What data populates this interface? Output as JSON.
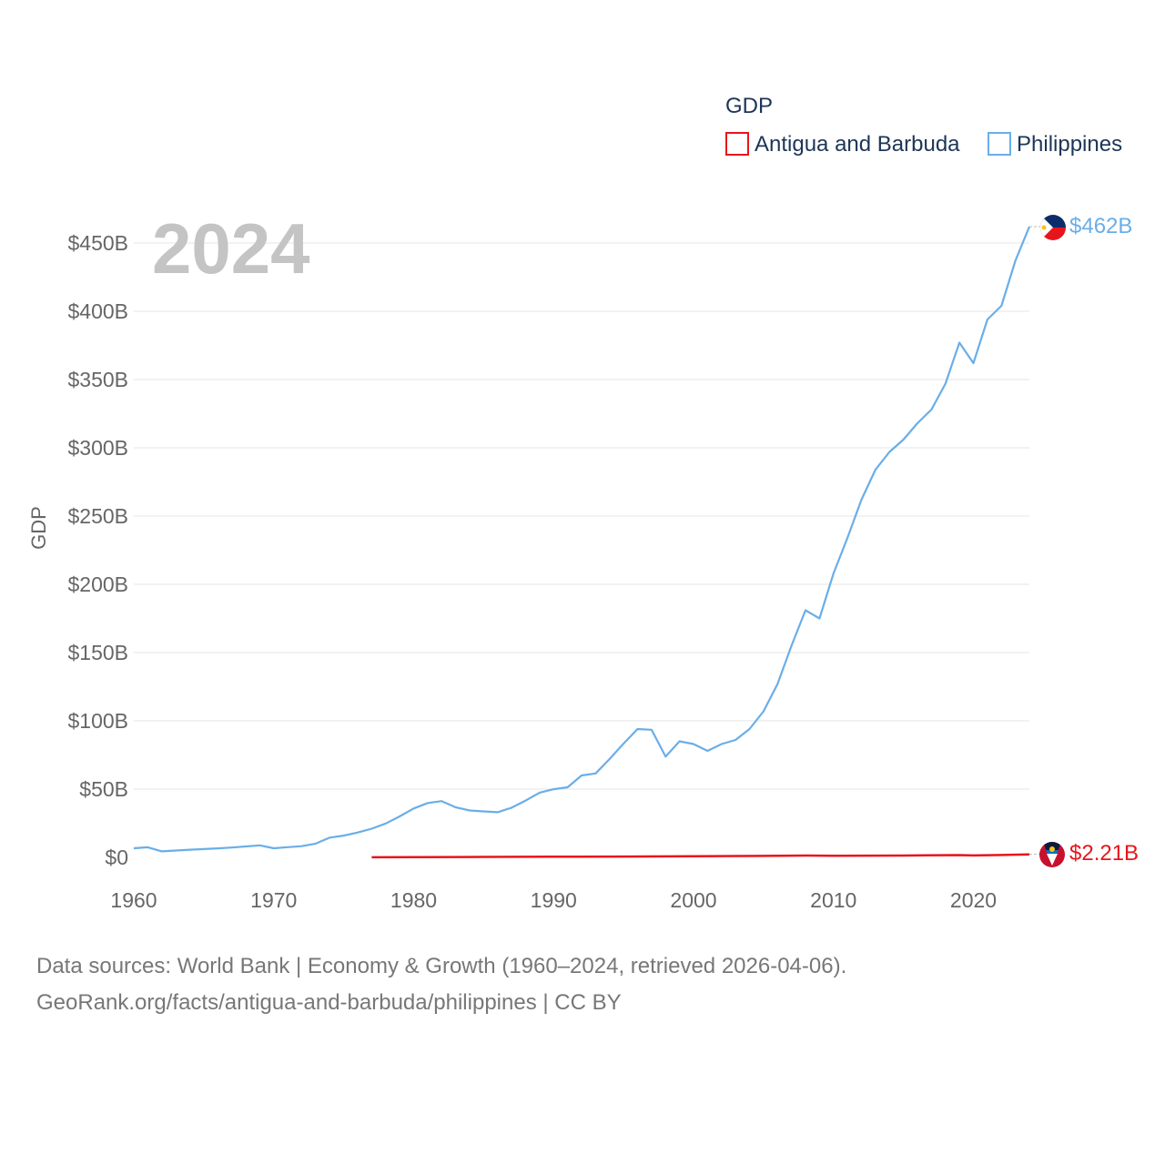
{
  "chart_data": {
    "type": "line",
    "legend_title": "GDP",
    "ylabel": "GDP",
    "year_label": "2024",
    "ylim": [
      0,
      462
    ],
    "xlim": [
      1960,
      2024
    ],
    "x_ticks": [
      1960,
      1970,
      1980,
      1990,
      2000,
      2010,
      2020
    ],
    "x_tick_labels": [
      "1960",
      "1970",
      "1980",
      "1990",
      "2000",
      "2010",
      "2020"
    ],
    "y_ticks": [
      0,
      50,
      100,
      150,
      200,
      250,
      300,
      350,
      400,
      450
    ],
    "y_tick_labels": [
      "$0",
      "$50B",
      "$100B",
      "$150B",
      "$200B",
      "$250B",
      "$300B",
      "$350B",
      "$400B",
      "$450B"
    ],
    "grid": true,
    "legend_position": "top-right",
    "series": [
      {
        "name": "Antigua and Barbuda",
        "color": "#e8141c",
        "end_label": "$2.21B",
        "flag_icon": "antigua-and-barbuda-flag-icon",
        "x": [
          1977,
          1980,
          1985,
          1990,
          1995,
          2000,
          2005,
          2008,
          2010,
          2015,
          2019,
          2020,
          2022,
          2024
        ],
        "values": [
          0.1,
          0.15,
          0.3,
          0.46,
          0.6,
          0.83,
          1.05,
          1.35,
          1.15,
          1.36,
          1.69,
          1.41,
          1.72,
          2.21
        ]
      },
      {
        "name": "Philippines",
        "color": "#6aaee8",
        "end_label": "$462B",
        "flag_icon": "philippines-flag-icon",
        "x": [
          1960,
          1961,
          1962,
          1963,
          1964,
          1965,
          1966,
          1967,
          1968,
          1969,
          1970,
          1971,
          1972,
          1973,
          1974,
          1975,
          1976,
          1977,
          1978,
          1979,
          1980,
          1981,
          1982,
          1983,
          1984,
          1985,
          1986,
          1987,
          1988,
          1989,
          1990,
          1991,
          1992,
          1993,
          1994,
          1995,
          1996,
          1997,
          1998,
          1999,
          2000,
          2001,
          2002,
          2003,
          2004,
          2005,
          2006,
          2007,
          2008,
          2009,
          2010,
          2011,
          2012,
          2013,
          2014,
          2015,
          2016,
          2017,
          2018,
          2019,
          2020,
          2021,
          2022,
          2023,
          2024
        ],
        "values": [
          6.7,
          7.4,
          4.4,
          5.0,
          5.6,
          6.1,
          6.6,
          7.2,
          8.0,
          8.8,
          6.7,
          7.5,
          8.2,
          10.1,
          14.5,
          15.9,
          18.2,
          21.0,
          24.8,
          30.0,
          35.8,
          39.8,
          41.2,
          36.7,
          34.3,
          33.7,
          33.1,
          36.4,
          41.6,
          47.4,
          49.9,
          51.3,
          60.0,
          61.5,
          72.1,
          83.3,
          94.0,
          93.5,
          73.8,
          85.0,
          83.0,
          78.0,
          83.0,
          86.0,
          94.0,
          107.0,
          127.0,
          155.0,
          181.0,
          175.0,
          208.0,
          234.0,
          262.0,
          284.0,
          297.0,
          306.0,
          318.0,
          328.0,
          347.0,
          377.0,
          362.0,
          394.0,
          404.0,
          437.0,
          462.0
        ]
      }
    ]
  },
  "source": {
    "line1": "Data sources: World Bank | Economy & Growth (1960–2024, retrieved 2026-04-06).",
    "line2": "GeoRank.org/facts/antigua-and-barbuda/philippines | CC BY"
  }
}
